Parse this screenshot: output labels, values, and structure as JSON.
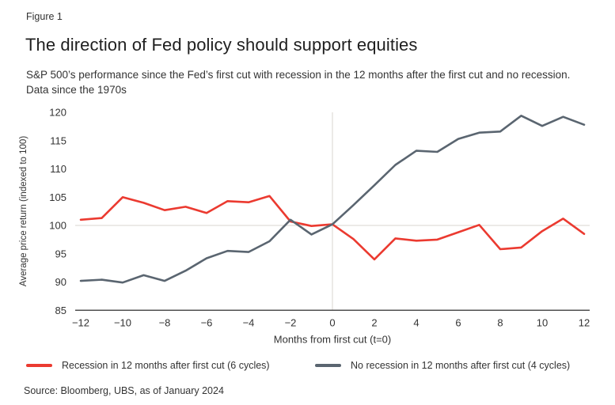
{
  "figure_label": "Figure 1",
  "title": "The direction of Fed policy should support equities",
  "subtitle": "S&P 500’s performance since the Fed’s first cut with recession in the 12 months after the first cut and no recession. Data since the 1970s",
  "source": "Source: Bloomberg, UBS, as of January 2024",
  "colors": {
    "recession_line": "#eb3a30",
    "no_recession_line": "#5a6570",
    "gridline": "#d8d5cf",
    "axis_line": "#4f4f4f",
    "tick_text": "#333333",
    "title_text": "#1f1f1f"
  },
  "chart_data": {
    "type": "line",
    "title": "The direction of Fed policy should support equities",
    "xlabel": "Months from first cut (t=0)",
    "ylabel": "Average price return (indexed to 100)",
    "x": [
      -12,
      -11,
      -10,
      -9,
      -8,
      -7,
      -6,
      -5,
      -4,
      -3,
      -2,
      -1,
      0,
      1,
      2,
      3,
      4,
      5,
      6,
      7,
      8,
      9,
      10,
      11,
      12
    ],
    "series": [
      {
        "name": "Recession in 12 months after first cut (6 cycles)",
        "color": "#eb3a30",
        "values": [
          101.0,
          101.3,
          105.0,
          104.0,
          102.7,
          103.3,
          102.2,
          104.3,
          104.1,
          105.2,
          100.7,
          99.9,
          100.2,
          97.6,
          94.0,
          97.7,
          97.3,
          97.5,
          98.8,
          100.1,
          95.8,
          96.1,
          99.0,
          101.2,
          98.5
        ]
      },
      {
        "name": "No recession in 12 months after first cut (4 cycles)",
        "color": "#5a6570",
        "values": [
          90.2,
          90.4,
          89.9,
          91.2,
          90.2,
          92.0,
          94.2,
          95.5,
          95.3,
          97.2,
          101.0,
          98.4,
          100.2,
          103.6,
          107.1,
          110.7,
          113.2,
          113.0,
          115.3,
          116.4,
          116.6,
          119.4,
          117.6,
          119.2,
          117.8
        ]
      }
    ],
    "ylim": [
      85,
      120
    ],
    "yticks": [
      85,
      90,
      95,
      100,
      105,
      110,
      115,
      120
    ],
    "xticks": [
      -12,
      -10,
      -8,
      -6,
      -4,
      -2,
      0,
      2,
      4,
      6,
      8,
      10,
      12
    ],
    "grid": {
      "horizontal_at": 100,
      "vertical_at": 0
    },
    "legend_position": "bottom"
  }
}
